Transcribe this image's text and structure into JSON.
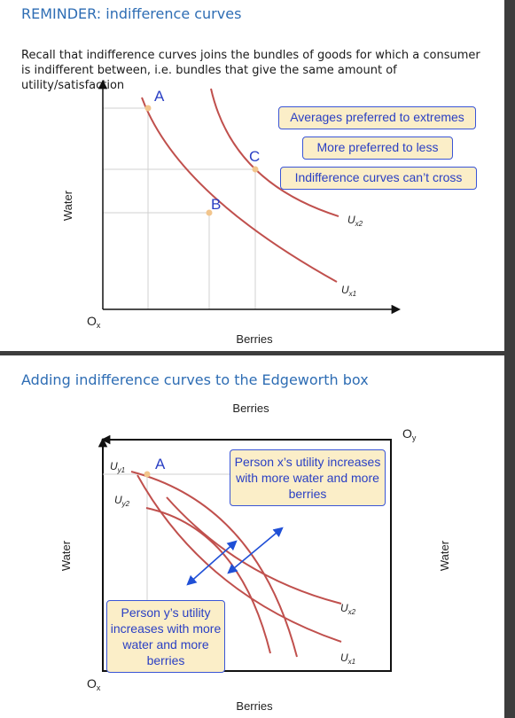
{
  "slide1": {
    "title": "REMINDER: indifference curves",
    "intro": "Recall that indifference curves joins the bundles of goods for which a consumer is indifferent between, i.e. bundles that give the same amount of utility/satisfaction",
    "y_axis_label": "Water",
    "x_axis_label": "Berries",
    "origin_label": "O",
    "origin_sub": "x",
    "points": {
      "a": "A",
      "b": "B",
      "c": "C"
    },
    "curve_labels": {
      "ux2": {
        "base": "U",
        "sub": "x2"
      },
      "ux1": {
        "base": "U",
        "sub": "x1"
      }
    },
    "callouts": [
      "Averages preferred to extremes",
      "More preferred to less",
      "Indifference curves can’t cross"
    ]
  },
  "slide2": {
    "title": "Adding indifference curves to the Edgeworth box",
    "top_label": "Berries",
    "bottom_label": "Berries",
    "left_label": "Water",
    "right_label": "Water",
    "origin_x": {
      "base": "O",
      "sub": "x"
    },
    "origin_y": {
      "base": "O",
      "sub": "y"
    },
    "point_a": "A",
    "curve_labels": {
      "uy1": {
        "base": "U",
        "sub": "y1"
      },
      "uy2": {
        "base": "U",
        "sub": "y2"
      },
      "ux2": {
        "base": "U",
        "sub": "x2"
      },
      "ux1": {
        "base": "U",
        "sub": "x1"
      }
    },
    "callout_x": "Person x’s utility increases with more water and more berries",
    "callout_y": "Person y’s utility increases with more water and more berries"
  },
  "colors": {
    "curve": "#c0504d",
    "point": "#f2c58c",
    "accent_blue": "#2e6db4",
    "arrow_blue": "#1f4fd6",
    "callout_fill": "#fbeec8",
    "callout_border": "#3a55d6",
    "separator": "#3d3d3d"
  }
}
